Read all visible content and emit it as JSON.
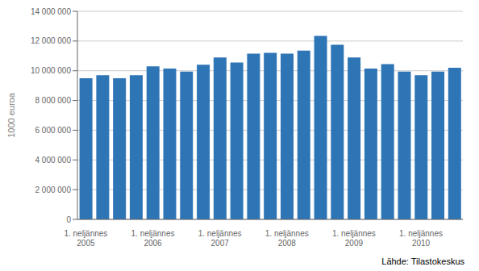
{
  "chart_data": {
    "type": "bar",
    "categories": [
      "1. neljännes\n2005",
      null,
      null,
      null,
      "1. neljännes\n2006",
      null,
      null,
      null,
      "1. neljännes\n2007",
      null,
      null,
      null,
      "1. neljännes\n2008",
      null,
      null,
      null,
      "1. neljännes\n2009",
      null,
      null,
      null,
      "1. neljännes\n2010",
      null,
      null
    ],
    "values": [
      9500000,
      9700000,
      9500000,
      9700000,
      10300000,
      10150000,
      9950000,
      10400000,
      10900000,
      10550000,
      11150000,
      11200000,
      11150000,
      11350000,
      12350000,
      11750000,
      10900000,
      10150000,
      10450000,
      9950000,
      9700000,
      9950000,
      10200000
    ],
    "color": "#2E75B6",
    "ylabel": "1000 euroa",
    "ylim": [
      0,
      14000000
    ],
    "yticks": [
      0,
      {
        "value": 2000000,
        "label": "2 000 000"
      },
      {
        "value": 4000000,
        "label": "4 000 000"
      },
      {
        "value": 6000000,
        "label": "6 000 000"
      },
      {
        "value": 8000000,
        "label": "8 000 000"
      },
      {
        "value": 10000000,
        "label": "10 000 000"
      },
      {
        "value": 12000000,
        "label": "12 000 000"
      },
      {
        "value": 14000000,
        "label": "14 000 000"
      }
    ],
    "grid": true,
    "annotations": [
      "Lähde: Tilastokeskus"
    ]
  }
}
